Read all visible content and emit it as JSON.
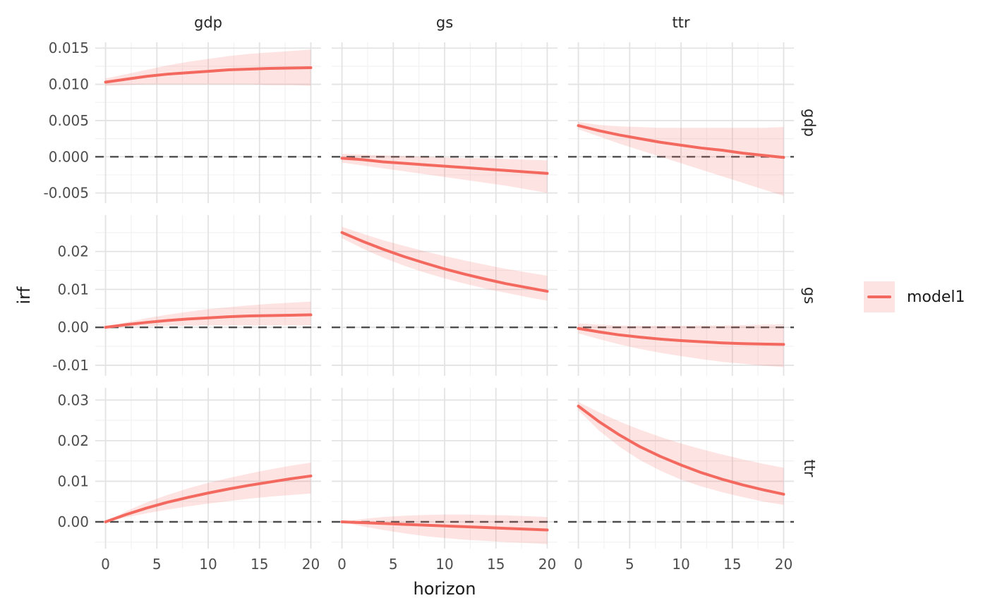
{
  "figure": {
    "x_axis_title": "horizon",
    "y_axis_title": "irf"
  },
  "legend": {
    "label": "model1",
    "position": "right"
  },
  "colors": {
    "line": "#F4695F",
    "ribbon_fill": "rgba(244,103,93,0.18)",
    "zero_line": "#4D4D4D",
    "grid_major": "#E3E3E3",
    "grid_minor": "#F2F2F2",
    "tick_text": "#4D4D4D",
    "strip_text": "#262626",
    "axis_title_text": "#1A1A1A",
    "background": "#FFFFFF"
  },
  "chart_data": {
    "type": "line",
    "description": "3x3 facet grid of impulse response functions (line with confidence ribbon), dashed zero reference line in each panel",
    "series_name": "model1",
    "zero_reference_line": 0,
    "facets": {
      "columns": [
        "gdp",
        "gs",
        "ttr"
      ],
      "rows": [
        "gdp",
        "gs",
        "ttr"
      ],
      "column_meaning": "impulse",
      "row_meaning": "response"
    },
    "x": [
      0,
      2,
      4,
      6,
      8,
      10,
      12,
      14,
      16,
      18,
      20
    ],
    "x_scale": {
      "domain": [
        -1,
        21
      ],
      "major_ticks": [
        0,
        5,
        10,
        15,
        20
      ],
      "tick_labels": [
        "0",
        "5",
        "10",
        "15",
        "20"
      ],
      "minor_ticks": [
        2.5,
        7.5,
        12.5,
        17.5
      ]
    },
    "row_scales": [
      {
        "row": "gdp",
        "domain": [
          -0.0064,
          0.0158
        ],
        "major_ticks": [
          -0.005,
          0.0,
          0.005,
          0.01,
          0.015
        ],
        "tick_labels": [
          "-0.005",
          "0.000",
          "0.005",
          "0.010",
          "0.015"
        ],
        "minor_ticks": [
          -0.0025,
          0.0025,
          0.0075,
          0.0125
        ]
      },
      {
        "row": "gs",
        "domain": [
          -0.0128,
          0.0296
        ],
        "major_ticks": [
          -0.01,
          0.0,
          0.01,
          0.02
        ],
        "tick_labels": [
          "-0.01",
          "0.00",
          "0.01",
          "0.02"
        ],
        "minor_ticks": [
          -0.005,
          0.005,
          0.015,
          0.025
        ]
      },
      {
        "row": "ttr",
        "domain": [
          -0.0066,
          0.033
        ],
        "major_ticks": [
          0.0,
          0.01,
          0.02,
          0.03
        ],
        "tick_labels": [
          "0.00",
          "0.01",
          "0.02",
          "0.03"
        ],
        "minor_ticks": [
          -0.005,
          0.005,
          0.015,
          0.025
        ]
      }
    ],
    "panels": [
      {
        "impulse": "gdp",
        "response": "gdp",
        "line": [
          0.0103,
          0.0107,
          0.0111,
          0.0114,
          0.0116,
          0.0118,
          0.012,
          0.0121,
          0.0122,
          0.01225,
          0.0123
        ],
        "upper": [
          0.0108,
          0.0114,
          0.012,
          0.0126,
          0.0131,
          0.0135,
          0.0139,
          0.0142,
          0.0144,
          0.0146,
          0.0148
        ],
        "lower": [
          0.0098,
          0.0099,
          0.01,
          0.01,
          0.01,
          0.01,
          0.01,
          0.01,
          0.0099,
          0.0099,
          0.0098
        ]
      },
      {
        "impulse": "gs",
        "response": "gdp",
        "line": [
          -0.0002,
          -0.0004,
          -0.0007,
          -0.0009,
          -0.0011,
          -0.0013,
          -0.0015,
          -0.0017,
          -0.0019,
          -0.0021,
          -0.0023
        ],
        "upper": [
          0.0004,
          0.0003,
          0.0002,
          0.0001,
          0.0,
          -0.0001,
          -0.0002,
          -0.0002,
          -0.0003,
          -0.0004,
          -0.0005
        ],
        "lower": [
          -0.0008,
          -0.0012,
          -0.0016,
          -0.002,
          -0.0024,
          -0.0028,
          -0.0032,
          -0.0036,
          -0.004,
          -0.0045,
          -0.005
        ]
      },
      {
        "impulse": "ttr",
        "response": "gdp",
        "line": [
          0.0043,
          0.0036,
          0.003,
          0.0025,
          0.002,
          0.0016,
          0.0012,
          0.0009,
          0.0005,
          0.0002,
          -0.0001
        ],
        "upper": [
          0.0048,
          0.0044,
          0.0042,
          0.0041,
          0.004,
          0.004,
          0.004,
          0.004,
          0.004,
          0.004,
          0.0041
        ],
        "lower": [
          0.0038,
          0.0028,
          0.0018,
          0.0009,
          0.0,
          -0.0009,
          -0.0018,
          -0.0027,
          -0.0036,
          -0.0045,
          -0.0054
        ]
      },
      {
        "impulse": "gdp",
        "response": "gs",
        "line": [
          0.0,
          0.0007,
          0.0013,
          0.0018,
          0.0022,
          0.0025,
          0.0028,
          0.003,
          0.0031,
          0.0032,
          0.0033
        ],
        "upper": [
          0.0,
          0.0013,
          0.0024,
          0.0033,
          0.0041,
          0.0048,
          0.0053,
          0.0058,
          0.0062,
          0.0065,
          0.0068
        ],
        "lower": [
          0.0,
          0.0002,
          0.0003,
          0.0004,
          0.0004,
          0.0005,
          0.0005,
          0.0005,
          0.0005,
          0.0005,
          0.0005
        ]
      },
      {
        "impulse": "gs",
        "response": "gs",
        "line": [
          0.025,
          0.0227,
          0.0206,
          0.0187,
          0.017,
          0.0154,
          0.014,
          0.0127,
          0.0115,
          0.0105,
          0.0095
        ],
        "upper": [
          0.0265,
          0.0247,
          0.023,
          0.0215,
          0.0201,
          0.0188,
          0.0176,
          0.0165,
          0.0154,
          0.0145,
          0.0136
        ],
        "lower": [
          0.0235,
          0.0208,
          0.0184,
          0.0163,
          0.0145,
          0.0129,
          0.0115,
          0.0102,
          0.0091,
          0.008,
          0.007
        ]
      },
      {
        "impulse": "ttr",
        "response": "gs",
        "line": [
          -0.0003,
          -0.0012,
          -0.002,
          -0.0026,
          -0.0031,
          -0.0035,
          -0.0038,
          -0.0041,
          -0.0043,
          -0.0044,
          -0.0045
        ],
        "upper": [
          0.001,
          0.0007,
          0.0005,
          0.0004,
          0.0004,
          0.0004,
          0.0005,
          0.0005,
          0.0006,
          0.0007,
          0.0008
        ],
        "lower": [
          -0.0016,
          -0.0031,
          -0.0045,
          -0.0057,
          -0.0067,
          -0.0076,
          -0.0084,
          -0.0091,
          -0.0096,
          -0.0101,
          -0.0105
        ]
      },
      {
        "impulse": "gdp",
        "response": "ttr",
        "line": [
          0.0,
          0.0018,
          0.0034,
          0.0048,
          0.006,
          0.0071,
          0.0081,
          0.009,
          0.0098,
          0.0106,
          0.0113
        ],
        "upper": [
          0.0,
          0.0026,
          0.0048,
          0.0066,
          0.0082,
          0.0096,
          0.0108,
          0.0119,
          0.0129,
          0.0138,
          0.0146
        ],
        "lower": [
          0.0,
          0.0011,
          0.0021,
          0.003,
          0.0038,
          0.0045,
          0.0051,
          0.0057,
          0.0062,
          0.0066,
          0.007
        ]
      },
      {
        "impulse": "gs",
        "response": "ttr",
        "line": [
          0.0,
          -0.0002,
          -0.0004,
          -0.0006,
          -0.0008,
          -0.001,
          -0.0012,
          -0.0014,
          -0.0016,
          -0.0018,
          -0.002
        ],
        "upper": [
          0.0,
          0.0007,
          0.0012,
          0.0015,
          0.0017,
          0.0018,
          0.0018,
          0.0017,
          0.0016,
          0.0014,
          0.0012
        ],
        "lower": [
          0.0,
          -0.0011,
          -0.002,
          -0.0028,
          -0.0035,
          -0.004,
          -0.0044,
          -0.0047,
          -0.005,
          -0.0052,
          -0.0055
        ]
      },
      {
        "impulse": "ttr",
        "response": "ttr",
        "line": [
          0.0285,
          0.0247,
          0.0214,
          0.0185,
          0.0161,
          0.014,
          0.0121,
          0.0105,
          0.0091,
          0.0079,
          0.0068
        ],
        "upper": [
          0.0295,
          0.027,
          0.0247,
          0.0227,
          0.0209,
          0.0193,
          0.0179,
          0.0166,
          0.0154,
          0.0143,
          0.0133
        ],
        "lower": [
          0.0275,
          0.0225,
          0.0185,
          0.0152,
          0.0126,
          0.0104,
          0.0087,
          0.0073,
          0.0061,
          0.005,
          0.0042
        ]
      }
    ]
  }
}
